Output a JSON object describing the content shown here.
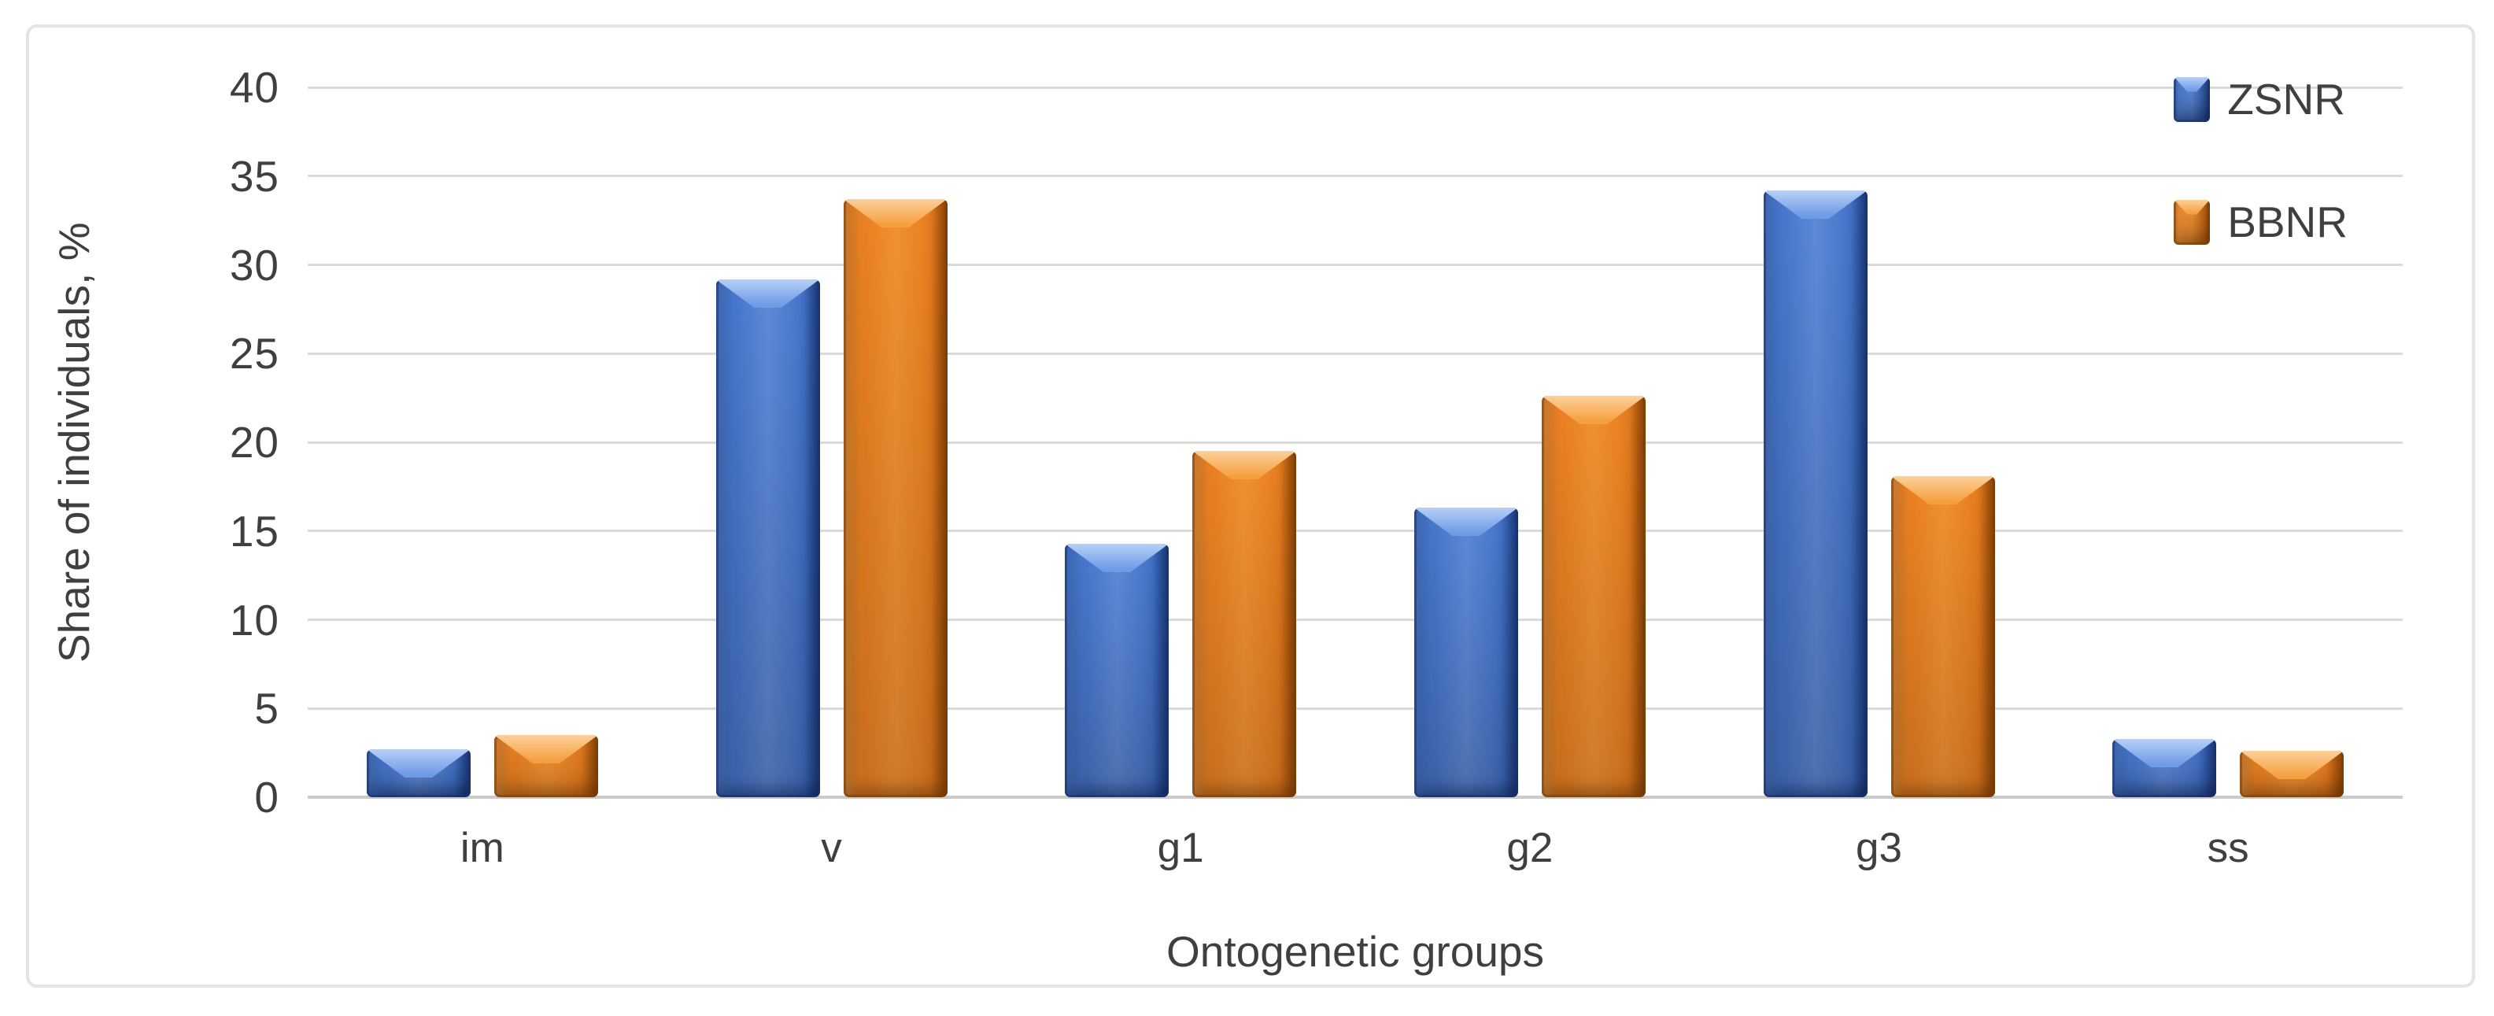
{
  "chart_data": {
    "type": "bar",
    "title": "",
    "categories": [
      "im",
      "v",
      "g1",
      "g2",
      "g3",
      "ss"
    ],
    "series": [
      {
        "name": "ZSNR",
        "color": "#4472C4",
        "values": [
          2.7,
          29.2,
          14.3,
          16.3,
          34.2,
          3.3
        ]
      },
      {
        "name": "BBNR",
        "color": "#ED7D31",
        "values": [
          3.5,
          33.7,
          19.5,
          22.6,
          18.1,
          2.6
        ]
      }
    ],
    "xlabel": "Ontogenetic groups",
    "ylabel": "Share of individuals, %",
    "ylim": [
      0,
      40
    ],
    "yticks": [
      0,
      5,
      10,
      15,
      20,
      25,
      30,
      35,
      40
    ],
    "grid": "horizontal-major",
    "legend_position": "top-right",
    "bar_style": "3d-bevel"
  },
  "colors": {
    "series_zsnr": "#4472C4",
    "series_bbnr": "#ED7D31",
    "gridline": "#DADADA",
    "axis_line": "#CBCBCB",
    "text": "#3F3F3F",
    "frame_border": "#E4E4E6",
    "background": "#FFFFFF"
  }
}
